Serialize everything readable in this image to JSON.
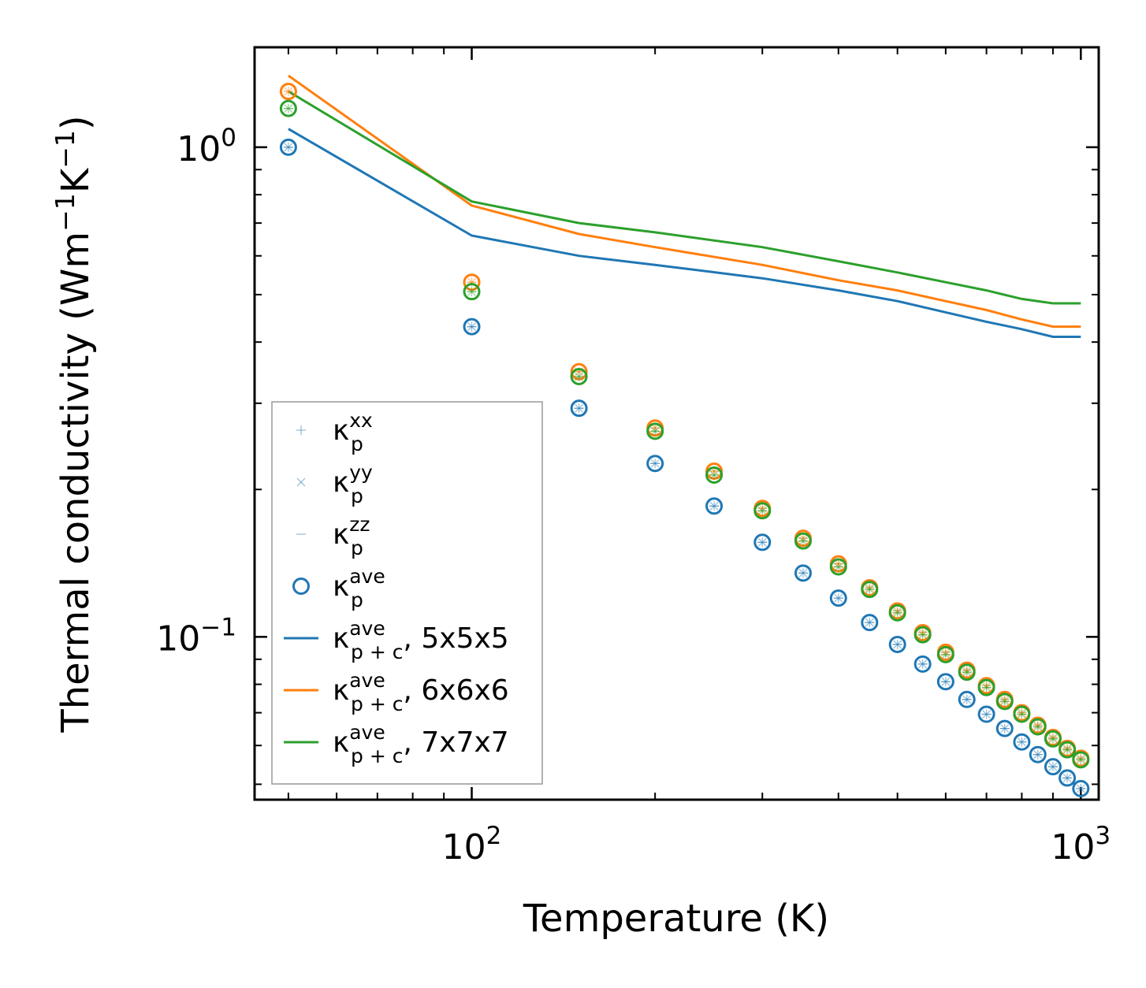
{
  "chart_data": {
    "type": "scatter+line",
    "xscale": "log",
    "yscale": "log",
    "xlabel": "Temperature (K)",
    "ylabel": {
      "main": "Thermal conductivity (Wm",
      "sup1": "−1",
      "mid": "K",
      "sup2": "−1",
      "end": ")"
    },
    "xlim": [
      44,
      1070
    ],
    "ylim": [
      0.0465,
      1.6
    ],
    "xticks": [
      {
        "value": 100,
        "base": "10",
        "exp": "2"
      },
      {
        "value": 1000,
        "base": "10",
        "exp": "3"
      }
    ],
    "yticks": [
      {
        "value": 1.0,
        "base": "10",
        "exp": "0"
      },
      {
        "value": 0.1,
        "base": "10",
        "exp": "−1"
      }
    ],
    "x": [
      50,
      100,
      150,
      200,
      250,
      300,
      350,
      400,
      450,
      500,
      550,
      600,
      650,
      700,
      750,
      800,
      850,
      900,
      950,
      1000
    ],
    "series": [
      {
        "name": "5x5x5",
        "color": "#1f77b4",
        "points": [
          1.0,
          0.43,
          0.293,
          0.226,
          0.185,
          0.156,
          0.135,
          0.12,
          0.107,
          0.0965,
          0.088,
          0.081,
          0.0745,
          0.0695,
          0.065,
          0.061,
          0.0575,
          0.0543,
          0.0515,
          0.049
        ],
        "line": [
          [
            50,
            1.09
          ],
          [
            100,
            0.66
          ],
          [
            150,
            0.6
          ],
          [
            200,
            0.575
          ],
          [
            300,
            0.54
          ],
          [
            400,
            0.51
          ],
          [
            500,
            0.485
          ],
          [
            600,
            0.46
          ],
          [
            700,
            0.44
          ],
          [
            800,
            0.425
          ],
          [
            900,
            0.41
          ],
          [
            1000,
            0.41
          ]
        ]
      },
      {
        "name": "6x6x6",
        "color": "#ff7f0e",
        "points": [
          1.3,
          0.53,
          0.348,
          0.267,
          0.218,
          0.183,
          0.159,
          0.141,
          0.126,
          0.113,
          0.102,
          0.093,
          0.0855,
          0.0795,
          0.0745,
          0.07,
          0.066,
          0.0623,
          0.0592,
          0.0565
        ],
        "line": [
          [
            50,
            1.4
          ],
          [
            100,
            0.76
          ],
          [
            150,
            0.665
          ],
          [
            200,
            0.625
          ],
          [
            300,
            0.575
          ],
          [
            400,
            0.535
          ],
          [
            500,
            0.51
          ],
          [
            600,
            0.485
          ],
          [
            700,
            0.465
          ],
          [
            800,
            0.445
          ],
          [
            900,
            0.43
          ],
          [
            1000,
            0.43
          ]
        ]
      },
      {
        "name": "7x7x7",
        "color": "#2ca02c",
        "points": [
          1.2,
          0.507,
          0.34,
          0.263,
          0.214,
          0.181,
          0.157,
          0.139,
          0.125,
          0.112,
          0.101,
          0.092,
          0.0847,
          0.0788,
          0.0738,
          0.0695,
          0.0655,
          0.0619,
          0.0588,
          0.0561
        ],
        "line": [
          [
            50,
            1.3
          ],
          [
            100,
            0.775
          ],
          [
            150,
            0.7
          ],
          [
            200,
            0.67
          ],
          [
            300,
            0.625
          ],
          [
            400,
            0.585
          ],
          [
            500,
            0.555
          ],
          [
            600,
            0.53
          ],
          [
            700,
            0.51
          ],
          [
            800,
            0.49
          ],
          [
            900,
            0.48
          ],
          [
            1000,
            0.48
          ]
        ]
      }
    ],
    "legend": {
      "position": "lower-left",
      "entries": [
        {
          "base": "κ",
          "sup": "xx",
          "sub": "p",
          "suffix": "",
          "marker": "plus"
        },
        {
          "base": "κ",
          "sup": "yy",
          "sub": "p",
          "suffix": "",
          "marker": "cross"
        },
        {
          "base": "κ",
          "sup": "zz",
          "sub": "p",
          "suffix": "",
          "marker": "dash"
        },
        {
          "base": "κ",
          "sup": "ave",
          "sub": "p",
          "suffix": "",
          "marker": "circle"
        },
        {
          "base": "κ",
          "sup": "ave",
          "sub": "p + c",
          "suffix": ", 5x5x5",
          "marker": "line-5"
        },
        {
          "base": "κ",
          "sup": "ave",
          "sub": "p + c",
          "suffix": ", 6x6x6",
          "marker": "line-6"
        },
        {
          "base": "κ",
          "sup": "ave",
          "sub": "p + c",
          "suffix": ", 7x7x7",
          "marker": "line-7"
        }
      ]
    }
  }
}
